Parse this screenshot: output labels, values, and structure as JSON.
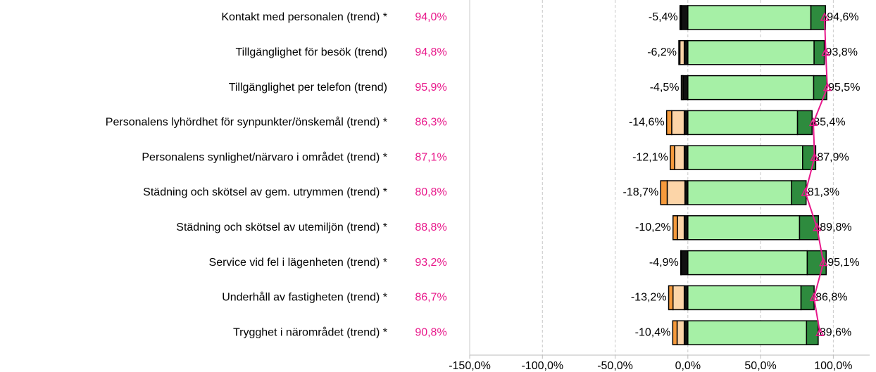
{
  "chart_data": {
    "type": "diverging_bar",
    "categories": [
      "Kontakt med personalen (trend) *",
      "Tillgänglighet för besök (trend)",
      "Tillgänglighet per telefon (trend)",
      "Personalens lyhördhet för synpunkter/önskemål (trend) *",
      "Personalens synlighet/närvaro i området (trend) *",
      "Städning och skötsel av gem. utrymmen (trend) *",
      "Städning och skötsel av utemiljön (trend) *",
      "Service vid fel i lägenheten (trend) *",
      "Underhåll av fastigheten (trend) *",
      "Trygghet i närområdet (trend) *"
    ],
    "negative_series": [
      {
        "color": "#111111",
        "values": [
          -4.4,
          -2.5,
          -3.3,
          -2.5,
          -2.5,
          -2.0,
          -2.5,
          -4.5,
          -2.5,
          -2.5
        ]
      },
      {
        "color": "#fcd5a8",
        "values": [
          -0.6,
          -3.0,
          -0.8,
          -8.6,
          -6.6,
          -12.2,
          -4.7,
          -0.3,
          -7.7,
          -4.9
        ]
      },
      {
        "color": "#f59a3c",
        "values": [
          -0.4,
          -0.7,
          -0.4,
          -3.5,
          -3.0,
          -4.5,
          -3.0,
          -0.1,
          -3.0,
          -3.0
        ]
      }
    ],
    "positive_series": [
      {
        "color": "#a6f0a6",
        "values": [
          84.6,
          86.8,
          86.5,
          75.4,
          78.9,
          71.3,
          76.8,
          82.1,
          77.8,
          81.6
        ]
      },
      {
        "color": "#2e8b3e",
        "values": [
          10.0,
          7.0,
          9.0,
          10.0,
          9.0,
          10.0,
          13.0,
          13.0,
          9.0,
          8.0
        ]
      }
    ],
    "negative_totals": [
      -5.4,
      -6.2,
      -4.5,
      -14.6,
      -12.1,
      -18.7,
      -10.2,
      -4.9,
      -13.2,
      -10.4
    ],
    "negative_total_labels": [
      "-5,4%",
      "-6,2%",
      "-4,5%",
      "-14,6%",
      "-12,1%",
      "-18,7%",
      "-10,2%",
      "-4,9%",
      "-13,2%",
      "-10,4%"
    ],
    "positive_totals": [
      94.6,
      93.8,
      95.5,
      85.4,
      87.9,
      81.3,
      89.8,
      95.1,
      86.8,
      89.6
    ],
    "positive_total_labels": [
      "94,6%",
      "93,8%",
      "95,5%",
      "85,4%",
      "87,9%",
      "81,3%",
      "89,8%",
      "95,1%",
      "86,8%",
      "89,6%"
    ],
    "previous": {
      "color": "#e8198b",
      "values": [
        94.0,
        94.8,
        95.9,
        86.3,
        87.1,
        80.8,
        88.8,
        93.2,
        86.7,
        90.8
      ],
      "value_labels": [
        "94,0%",
        "94,8%",
        "95,9%",
        "86,3%",
        "87,1%",
        "80,8%",
        "88,8%",
        "93,2%",
        "86,7%",
        "90,8%"
      ]
    },
    "xlim": [
      -150,
      125
    ],
    "xticks": [
      {
        "value": -150,
        "label": "-150,0%"
      },
      {
        "value": -100,
        "label": "-100,0%"
      },
      {
        "value": -50,
        "label": "-50,0%"
      },
      {
        "value": 0,
        "label": "0,0%"
      },
      {
        "value": 50,
        "label": "50,0%"
      },
      {
        "value": 100,
        "label": "100,0%"
      }
    ],
    "grid": true
  }
}
